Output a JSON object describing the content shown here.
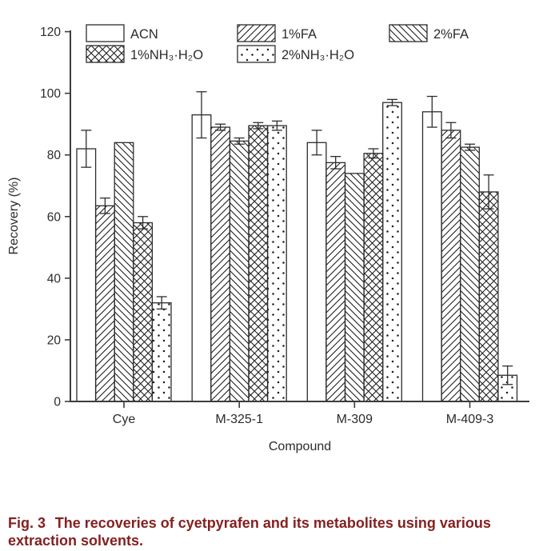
{
  "figure": {
    "caption_prefix": "Fig. 3",
    "caption_text": "The recoveries of cyetpyrafen and its metabolites using various extraction solvents.",
    "caption_color": "#842021"
  },
  "colors": {
    "axis": "#3c3c3c",
    "bar_stroke": "#2d2d2d",
    "hatch": "#1a1a1a",
    "tick_label": "#2b2b2b",
    "background": "#ffffff"
  },
  "chart_data": {
    "type": "bar",
    "title": "",
    "xlabel": "Compound",
    "ylabel": "Recovery (%)",
    "ylim": [
      0,
      120
    ],
    "yticks": [
      0,
      20,
      40,
      60,
      80,
      100,
      120
    ],
    "grid": false,
    "legend_position": "top-left",
    "error_bars": true,
    "categories": [
      "Cye",
      "M-325-1",
      "M-309",
      "M-409-3"
    ],
    "series": [
      {
        "name": "ACN",
        "pattern": "none",
        "values": [
          82,
          93,
          84,
          94
        ],
        "errors": [
          6,
          7.5,
          4,
          5
        ]
      },
      {
        "name": "1%FA",
        "pattern": "diag-forward",
        "values": [
          63.5,
          89,
          77.5,
          88
        ],
        "errors": [
          2.5,
          1,
          2,
          2.5
        ]
      },
      {
        "name": "2%FA",
        "pattern": "diag-back",
        "values": [
          84,
          84.5,
          74,
          82.5
        ],
        "errors": [
          0,
          1,
          0,
          1
        ]
      },
      {
        "name": "1%NH₃·H₂O",
        "pattern": "crosshatch",
        "values": [
          58,
          89.5,
          80.5,
          68
        ],
        "errors": [
          2,
          1,
          1.5,
          5.5
        ]
      },
      {
        "name": "2%NH₃·H₂O",
        "pattern": "dots",
        "values": [
          32,
          89.5,
          97,
          8.5
        ],
        "errors": [
          2,
          1.5,
          1,
          3
        ]
      }
    ]
  }
}
